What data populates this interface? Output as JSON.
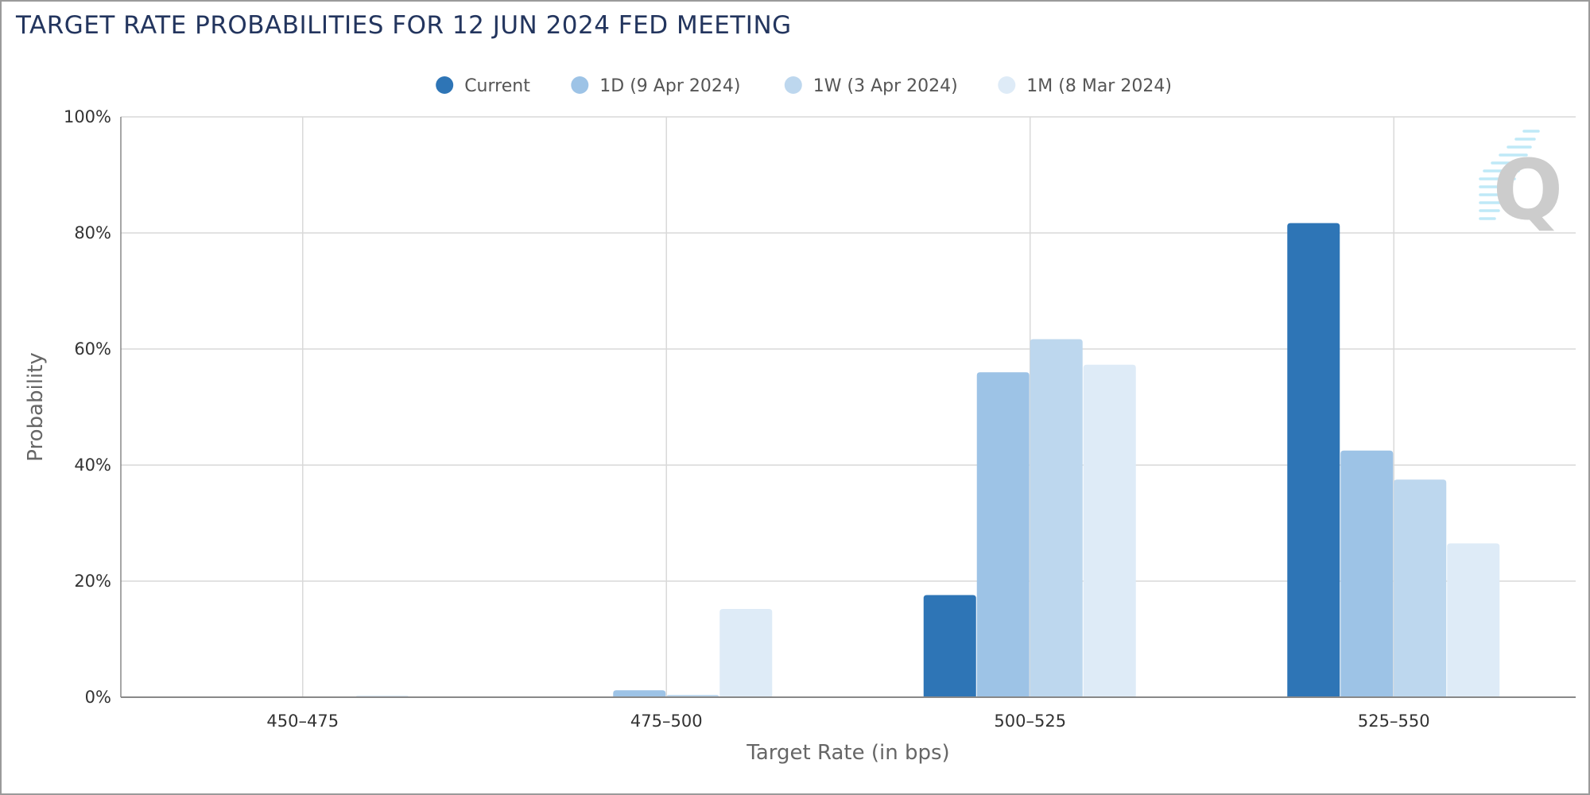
{
  "title": "TARGET RATE PROBABILITIES FOR 12 JUN 2024 FED MEETING",
  "chart_data": {
    "type": "bar",
    "title": "TARGET RATE PROBABILITIES FOR 12 JUN 2024 FED MEETING",
    "xlabel": "Target Rate (in bps)",
    "ylabel": "Probability",
    "ylim": [
      0,
      100
    ],
    "yticks": [
      "0%",
      "20%",
      "40%",
      "60%",
      "80%",
      "100%"
    ],
    "grid": true,
    "legend_position": "top-center",
    "categories": [
      "450–475",
      "475–500",
      "500–525",
      "525–550"
    ],
    "series": [
      {
        "name": "Current",
        "color": "#2e75b6",
        "values": [
          0.0,
          0.0,
          17.6,
          81.7
        ]
      },
      {
        "name": "1D (9 Apr 2024)",
        "color": "#9dc3e6",
        "values": [
          0.0,
          1.2,
          56.0,
          42.5
        ]
      },
      {
        "name": "1W (3 Apr 2024)",
        "color": "#bdd7ee",
        "values": [
          0.0,
          0.4,
          61.7,
          37.5
        ]
      },
      {
        "name": "1M (8 Mar 2024)",
        "color": "#deebf7",
        "values": [
          0.3,
          15.2,
          57.3,
          26.5
        ]
      }
    ]
  },
  "watermark": {
    "icon": "quikstrike-q-logo-icon",
    "letter": "Q"
  }
}
